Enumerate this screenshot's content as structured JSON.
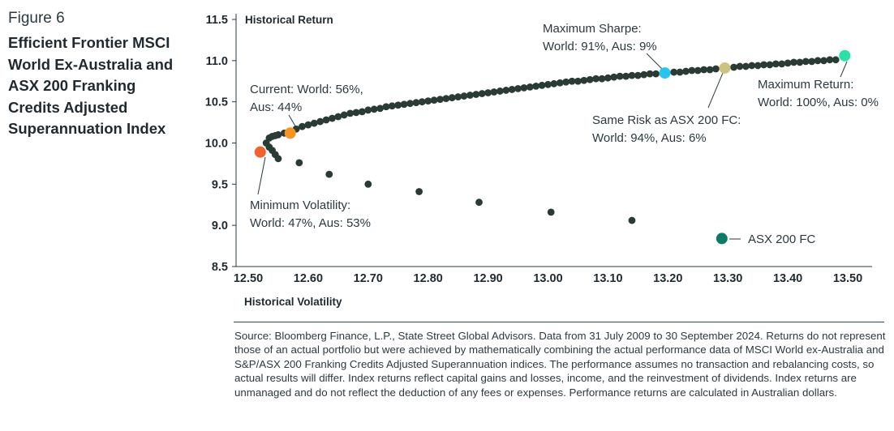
{
  "figure": {
    "label": "Figure 6",
    "title": "Efficient Frontier MSCI World Ex-Australia and ASX 200 Franking Credits Adjusted Superannuation Index"
  },
  "chart_data": {
    "type": "scatter",
    "xlabel": "Historical Volatility",
    "ylabel": "Historical Return",
    "xlim": [
      12.5,
      13.5
    ],
    "ylim": [
      8.5,
      11.5
    ],
    "xticks": [
      "12.50",
      "12.60",
      "12.70",
      "12.80",
      "12.90",
      "13.00",
      "13.10",
      "13.20",
      "13.30",
      "13.40",
      "13.50"
    ],
    "yticks": [
      "8.5",
      "9.0",
      "9.5",
      "10.0",
      "10.5",
      "11.0",
      "11.5"
    ],
    "grid": false,
    "frontier_color": "#2a3b34",
    "series": [
      {
        "role": "frontier",
        "x": [
          12.535,
          12.54,
          12.545,
          12.55,
          12.56,
          12.57,
          12.58,
          12.59,
          12.6,
          12.61,
          12.62,
          12.63,
          12.64,
          12.65,
          12.66,
          12.67,
          12.68,
          12.69,
          12.7,
          12.71,
          12.72,
          12.73,
          12.74,
          12.75,
          12.76,
          12.77,
          12.78,
          12.79,
          12.8,
          12.81,
          12.82,
          12.83,
          12.84,
          12.85,
          12.86,
          12.87,
          12.88,
          12.89,
          12.9,
          12.91,
          12.92,
          12.93,
          12.94,
          12.95,
          12.96,
          12.97,
          12.98,
          12.99,
          13.0,
          13.01,
          13.02,
          13.03,
          13.04,
          13.05,
          13.06,
          13.07,
          13.08,
          13.09,
          13.1,
          13.11,
          13.12,
          13.13,
          13.14,
          13.15,
          13.16,
          13.17,
          13.18,
          13.21,
          13.22,
          13.23,
          13.24,
          13.25,
          13.26,
          13.27,
          13.28,
          13.31,
          13.32,
          13.33,
          13.34,
          13.35,
          13.36,
          13.37,
          13.38,
          13.39,
          13.4,
          13.41,
          13.42,
          13.43,
          13.44,
          13.45,
          13.46,
          13.47,
          13.48
        ],
        "y": [
          10.06,
          10.08,
          10.09,
          10.1,
          10.12,
          10.14,
          10.17,
          10.2,
          10.22,
          10.24,
          10.26,
          10.28,
          10.3,
          10.32,
          10.34,
          10.36,
          10.37,
          10.38,
          10.4,
          10.41,
          10.42,
          10.44,
          10.45,
          10.46,
          10.47,
          10.48,
          10.49,
          10.5,
          10.51,
          10.52,
          10.53,
          10.54,
          10.55,
          10.56,
          10.57,
          10.58,
          10.59,
          10.6,
          10.61,
          10.62,
          10.63,
          10.64,
          10.65,
          10.66,
          10.67,
          10.68,
          10.69,
          10.7,
          10.71,
          10.72,
          10.73,
          10.74,
          10.75,
          10.75,
          10.76,
          10.77,
          10.78,
          10.78,
          10.79,
          10.8,
          10.81,
          10.81,
          10.82,
          10.82,
          10.83,
          10.84,
          10.84,
          10.86,
          10.86,
          10.87,
          10.88,
          10.88,
          10.89,
          10.89,
          10.9,
          10.92,
          10.93,
          10.93,
          10.94,
          10.94,
          10.95,
          10.95,
          10.96,
          10.96,
          10.97,
          10.98,
          10.98,
          10.99,
          10.99,
          11.0,
          11.0,
          11.01,
          11.01
        ]
      },
      {
        "role": "inefficient",
        "x": [
          12.53,
          12.535,
          12.54,
          12.545,
          12.55,
          12.585,
          12.635,
          12.7,
          12.785,
          12.885,
          13.005,
          13.14
        ],
        "y": [
          10.0,
          9.95,
          9.91,
          9.86,
          9.81,
          9.76,
          9.62,
          9.5,
          9.41,
          9.28,
          9.16,
          9.06
        ]
      }
    ],
    "highlights": [
      {
        "name": "Minimum Volatility",
        "x": 12.52,
        "y": 9.89,
        "color": "#f2622e",
        "label_lines": [
          "Minimum Volatility:",
          "World: 47%, Aus: 53%"
        ]
      },
      {
        "name": "Current",
        "x": 12.57,
        "y": 10.12,
        "color": "#f7941e",
        "label_lines": [
          "Current: World: 56%,",
          "Aus: 44%"
        ]
      },
      {
        "name": "Maximum Sharpe",
        "x": 13.195,
        "y": 10.85,
        "color": "#29c4ef",
        "label_lines": [
          "Maximum Sharpe:",
          "World: 91%, Aus: 9%"
        ]
      },
      {
        "name": "Same Risk as ASX 200 FC",
        "x": 13.295,
        "y": 10.91,
        "color": "#cdc281",
        "label_lines": [
          "Same Risk as ASX 200 FC:",
          "World: 94%, Aus: 6%"
        ]
      },
      {
        "name": "Maximum Return",
        "x": 13.495,
        "y": 11.06,
        "color": "#2de0a8",
        "label_lines": [
          "Maximum Return:",
          "World: 100%, Aus: 0%"
        ]
      },
      {
        "name": "ASX 200 FC",
        "x": 13.29,
        "y": 8.84,
        "color": "#0f7a66",
        "label_lines": [
          "ASX 200 FC"
        ]
      }
    ]
  },
  "footnote": "Source: Bloomberg Finance, L.P., State Street Global Advisors. Data from 31 July 2009 to 30 September 2024. Returns do not represent those of an actual portfolio but were achieved by mathematically combining the actual performance data of MSCI World ex-Australia and S&P/ASX 200 Franking Credits Adjusted Superannuation indices. The performance assumes no transaction and rebalancing costs, so actual results will differ. Index returns reflect capital gains and losses, income, and the reinvestment of dividends. Index returns are unmanaged and do not reflect the deduction of any fees or expenses. Performance returns are calculated in Australian dollars."
}
